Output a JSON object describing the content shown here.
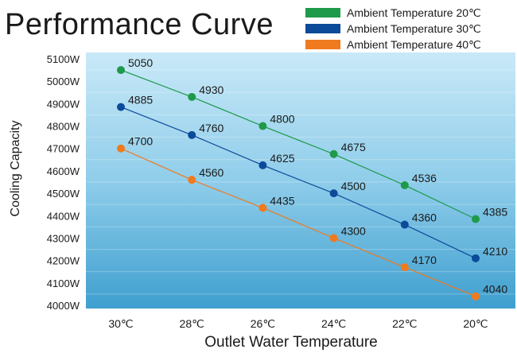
{
  "chart_data": {
    "type": "line",
    "title": "Performance Curve",
    "xlabel": "Outlet Water Temperature",
    "ylabel": "Cooling Capacity",
    "categories": [
      "30℃",
      "28℃",
      "26℃",
      "24℃",
      "22℃",
      "20℃"
    ],
    "y_ticks": [
      "4000W",
      "4100W",
      "4200W",
      "4300W",
      "4400W",
      "4500W",
      "4600W",
      "4700W",
      "4800W",
      "4900W",
      "5000W",
      "5100W"
    ],
    "ylim": [
      4000,
      5100
    ],
    "grid": false,
    "legend_position": "top-right",
    "series": [
      {
        "name": "Ambient Temperature 20℃",
        "color": "#1e9a4a",
        "values": [
          5050,
          4930,
          4800,
          4675,
          4536,
          4385
        ]
      },
      {
        "name": "Ambient Temperature 30℃",
        "color": "#0c4a9a",
        "values": [
          4885,
          4760,
          4625,
          4500,
          4360,
          4210
        ]
      },
      {
        "name": "Ambient Temperature 40℃",
        "color": "#f07a1e",
        "values": [
          4700,
          4560,
          4435,
          4300,
          4170,
          4040
        ]
      }
    ],
    "data_labels": [
      [
        "5050",
        "4930",
        "4800",
        "4675",
        "4536",
        "4385"
      ],
      [
        "4885",
        "4760",
        "4625",
        "4500",
        "4360",
        "4210"
      ],
      [
        "4700",
        "4560",
        "4435",
        "4300",
        "4170",
        "4040"
      ]
    ]
  }
}
